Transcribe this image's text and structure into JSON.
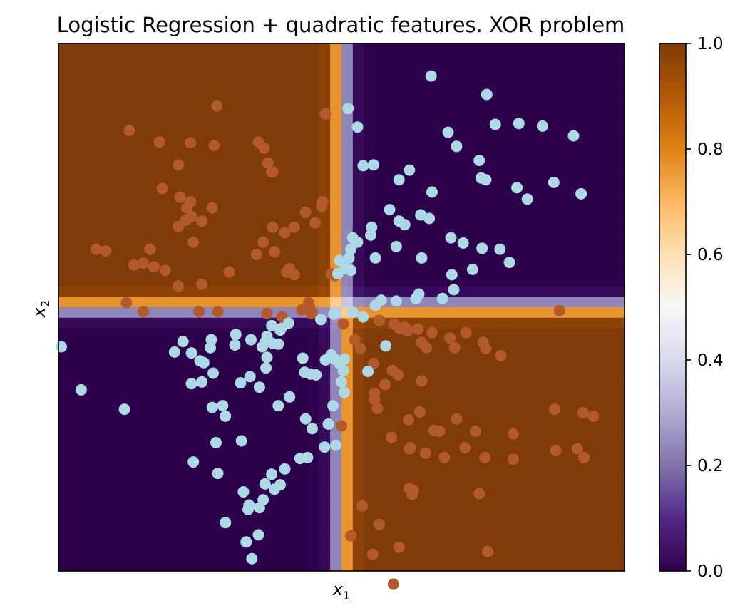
{
  "chart_data": {
    "type": "heatmap",
    "title": "Logistic Regression + quadratic features. XOR problem",
    "xlabel": "x1",
    "ylabel": "x2",
    "xlabel_base": "x",
    "xlabel_sub": "1",
    "ylabel_base": "x",
    "ylabel_sub": "2",
    "xlim": [
      -3.0,
      3.0
    ],
    "ylim": [
      -3.0,
      3.0
    ],
    "x_ticks_shown": false,
    "y_ticks_shown": false,
    "grid": false,
    "decision_surface": {
      "description_of_values": "predicted probability of class 1",
      "grid_resolution": 50,
      "boundary_x": 0.0,
      "boundary_y": 0.0,
      "scale_x": 0.1,
      "scale_y": 0.1
    },
    "colorbar": {
      "colormap": "PuOr_r",
      "range": [
        0.0,
        1.0
      ],
      "ticks": [
        "0.0",
        "0.2",
        "0.4",
        "0.6",
        "0.8",
        "1.0"
      ],
      "tick_values": [
        0.0,
        0.2,
        0.4,
        0.6,
        0.8,
        1.0
      ],
      "placement": "right"
    },
    "colors": {
      "class_1_points": "#b35a2d",
      "class_0_points": "#add8e6",
      "high": "#7f3b08",
      "low": "#2d004b",
      "mid": "#f7f7f7"
    },
    "series": [
      {
        "class": 1,
        "color": "#b35a2d",
        "points": [
          [
            -2.25,
            2.01
          ],
          [
            -1.93,
            1.88
          ],
          [
            -1.6,
            1.87
          ],
          [
            -1.35,
            1.84
          ],
          [
            -0.88,
            1.88
          ],
          [
            -0.82,
            1.81
          ],
          [
            -1.32,
            2.29
          ],
          [
            -0.17,
            2.2
          ],
          [
            -1.73,
            1.62
          ],
          [
            -0.73,
            1.54
          ],
          [
            -0.78,
            1.64
          ],
          [
            -0.74,
            1.54
          ],
          [
            -1.9,
            1.35
          ],
          [
            -1.71,
            1.25
          ],
          [
            -1.6,
            1.2
          ],
          [
            -1.37,
            1.13
          ],
          [
            -1.73,
            0.92
          ],
          [
            -1.65,
            0.99
          ],
          [
            -1.59,
            1.03
          ],
          [
            -1.64,
            1.13
          ],
          [
            -1.48,
            0.98
          ],
          [
            -0.73,
            0.91
          ],
          [
            -0.38,
            1.08
          ],
          [
            -0.2,
            1.2
          ],
          [
            -0.21,
            1.15
          ],
          [
            -0.5,
            0.91
          ],
          [
            -0.28,
            0.96
          ],
          [
            -0.6,
            0.85
          ],
          [
            -0.83,
            0.74
          ],
          [
            -1.57,
            0.74
          ],
          [
            -2.5,
            0.64
          ],
          [
            -2.6,
            0.66
          ],
          [
            -2.03,
            0.66
          ],
          [
            -2.2,
            0.48
          ],
          [
            -2.1,
            0.5
          ],
          [
            -1.99,
            0.46
          ],
          [
            -1.87,
            0.42
          ],
          [
            -1.48,
            0.26
          ],
          [
            -1.19,
            0.4
          ],
          [
            -0.9,
            0.6
          ],
          [
            -0.71,
            0.63
          ],
          [
            -0.55,
            0.44
          ],
          [
            -0.5,
            0.37
          ],
          [
            -0.58,
            0.4
          ],
          [
            -0.11,
            0.38
          ],
          [
            -0.07,
            0.36
          ],
          [
            -1.73,
            0.24
          ],
          [
            -2.28,
            0.05
          ],
          [
            -2.1,
            -0.05
          ],
          [
            -1.51,
            -0.05
          ],
          [
            -1.31,
            -0.05
          ],
          [
            -0.79,
            -0.07
          ],
          [
            -0.63,
            -0.11
          ],
          [
            -0.42,
            -0.03
          ],
          [
            -0.35,
            0.05
          ],
          [
            -0.34,
            0.01
          ],
          [
            -0.32,
            -0.07
          ],
          [
            -0.31,
            -0.06
          ],
          [
            0.02,
            -0.19
          ],
          [
            0.14,
            -0.37
          ],
          [
            0.2,
            -0.47
          ],
          [
            0.4,
            -0.15
          ],
          [
            0.56,
            -0.19
          ],
          [
            0.61,
            -0.24
          ],
          [
            0.7,
            -0.27
          ],
          [
            0.85,
            -0.4
          ],
          [
            0.67,
            -0.23
          ],
          [
            0.81,
            -0.25
          ],
          [
            0.9,
            -0.46
          ],
          [
            0.96,
            -0.29
          ],
          [
            1.15,
            -0.35
          ],
          [
            1.2,
            -0.46
          ],
          [
            1.32,
            -0.29
          ],
          [
            1.5,
            -0.4
          ],
          [
            1.53,
            -0.47
          ],
          [
            1.69,
            -0.55
          ],
          [
            0.54,
            -0.72
          ],
          [
            0.6,
            -0.77
          ],
          [
            0.34,
            -0.64
          ],
          [
            0.46,
            -0.88
          ],
          [
            0.35,
            -1.05
          ],
          [
            0.35,
            -0.98
          ],
          [
            0.38,
            -1.15
          ],
          [
            0.83,
            -1.19
          ],
          [
            0.85,
            -0.84
          ],
          [
            0.73,
            -1.6
          ],
          [
            0.72,
            -1.61
          ],
          [
            0.71,
            -1.28
          ],
          [
            0.53,
            -1.48
          ],
          [
            1.22,
            -1.27
          ],
          [
            1.31,
            -1.6
          ],
          [
            1.52,
            -1.71
          ],
          [
            1.82,
            -1.73
          ],
          [
            1.82,
            -1.44
          ],
          [
            2.26,
            -1.16
          ],
          [
            2.27,
            -1.63
          ],
          [
            2.56,
            -1.2
          ],
          [
            2.67,
            -1.24
          ],
          [
            2.57,
            -1.71
          ],
          [
            2.5,
            -1.61
          ],
          [
            1.09,
            -1.71
          ],
          [
            1.04,
            -1.41
          ],
          [
            0.98,
            -1.4
          ],
          [
            0.89,
            -1.66
          ],
          [
            1.42,
            -1.41
          ],
          [
            0.72,
            -2.06
          ],
          [
            0.4,
            -2.47
          ],
          [
            0.22,
            -2.26
          ],
          [
            0.76,
            -2.08
          ],
          [
            0.75,
            -2.13
          ],
          [
            0.1,
            -2.6
          ],
          [
            0.33,
            -2.81
          ],
          [
            1.55,
            -2.78
          ],
          [
            0.61,
            -2.73
          ],
          [
            1.46,
            -2.12
          ],
          [
            2.31,
            -0.04
          ],
          [
            0.0,
            -1.35
          ],
          [
            0.55,
            -3.15
          ]
        ]
      },
      {
        "class": 0,
        "color": "#add8e6",
        "points": [
          [
            0.95,
            2.63
          ],
          [
            1.54,
            2.42
          ],
          [
            1.63,
            2.08
          ],
          [
            1.88,
            2.09
          ],
          [
            2.13,
            2.06
          ],
          [
            2.46,
            1.95
          ],
          [
            1.13,
            1.99
          ],
          [
            1.22,
            1.83
          ],
          [
            1.46,
            1.67
          ],
          [
            1.53,
            1.45
          ],
          [
            2.25,
            1.42
          ],
          [
            2.54,
            1.29
          ],
          [
            1.97,
            1.23
          ],
          [
            1.86,
            1.36
          ],
          [
            1.48,
            1.47
          ],
          [
            0.96,
            1.31
          ],
          [
            0.72,
            1.56
          ],
          [
            0.61,
            1.45
          ],
          [
            0.34,
            1.62
          ],
          [
            0.17,
            2.05
          ],
          [
            0.07,
            2.26
          ],
          [
            0.23,
            1.61
          ],
          [
            0.51,
            1.11
          ],
          [
            0.61,
            0.98
          ],
          [
            0.67,
            0.94
          ],
          [
            0.84,
            1.05
          ],
          [
            0.93,
            1.01
          ],
          [
            0.32,
            0.91
          ],
          [
            0.31,
            0.82
          ],
          [
            0.17,
            0.74
          ],
          [
            0.12,
            0.79
          ],
          [
            0.1,
            0.66
          ],
          [
            0.08,
            0.56
          ],
          [
            -0.02,
            0.53
          ],
          [
            -0.04,
            0.38
          ],
          [
            0.04,
            0.44
          ],
          [
            0.1,
            0.42
          ],
          [
            0.36,
            0.56
          ],
          [
            0.58,
            0.69
          ],
          [
            0.85,
            0.56
          ],
          [
            1.16,
            0.79
          ],
          [
            1.29,
            0.73
          ],
          [
            1.49,
            0.67
          ],
          [
            1.68,
            0.66
          ],
          [
            1.78,
            0.51
          ],
          [
            1.39,
            0.43
          ],
          [
            1.17,
            0.37
          ],
          [
            1.19,
            0.2
          ],
          [
            1.07,
            0.1
          ],
          [
            0.79,
            0.1
          ],
          [
            0.82,
            0.15
          ],
          [
            0.58,
            0.07
          ],
          [
            0.42,
            0.08
          ],
          [
            0.36,
            0.02
          ],
          [
            0.12,
            -0.06
          ],
          [
            0.23,
            -0.11
          ],
          [
            -0.08,
            -0.08
          ],
          [
            -0.22,
            -0.14
          ],
          [
            -0.56,
            -0.18
          ],
          [
            -0.64,
            -0.24
          ],
          [
            -0.65,
            -0.26
          ],
          [
            -0.74,
            -0.21
          ],
          [
            -0.79,
            -0.33
          ],
          [
            -0.81,
            -0.4
          ],
          [
            -0.84,
            -0.45
          ],
          [
            -0.67,
            -0.42
          ],
          [
            -0.73,
            -0.41
          ],
          [
            -0.96,
            -0.37
          ],
          [
            -1.12,
            -0.31
          ],
          [
            -1.13,
            -0.43
          ],
          [
            -1.38,
            -0.37
          ],
          [
            -1.39,
            -0.46
          ],
          [
            -1.59,
            -0.52
          ],
          [
            -1.68,
            -0.39
          ],
          [
            -1.77,
            -0.51
          ],
          [
            -1.5,
            -0.61
          ],
          [
            -1.46,
            -0.63
          ],
          [
            -1.36,
            -0.75
          ],
          [
            -1.48,
            -0.85
          ],
          [
            -1.59,
            -0.87
          ],
          [
            -1.37,
            -1.14
          ],
          [
            -1.26,
            -1.12
          ],
          [
            -1.23,
            -1.24
          ],
          [
            -0.79,
            -0.57
          ],
          [
            -0.8,
            -0.69
          ],
          [
            -0.87,
            -0.91
          ],
          [
            -0.97,
            -0.79
          ],
          [
            -1.07,
            -0.86
          ],
          [
            -0.41,
            -0.58
          ],
          [
            -0.39,
            -0.74
          ],
          [
            -0.33,
            -0.76
          ],
          [
            -0.27,
            -0.77
          ],
          [
            -0.17,
            -0.6
          ],
          [
            -0.11,
            -0.54
          ],
          [
            -0.02,
            -0.64
          ],
          [
            0.02,
            -0.72
          ],
          [
            0.0,
            -0.85
          ],
          [
            0.03,
            -0.97
          ],
          [
            -0.67,
            -1.12
          ],
          [
            -0.55,
            -1.02
          ],
          [
            -0.38,
            -1.27
          ],
          [
            -0.31,
            -1.38
          ],
          [
            -0.09,
            -1.12
          ],
          [
            -0.14,
            -1.33
          ],
          [
            -0.06,
            -1.57
          ],
          [
            -0.18,
            -1.59
          ],
          [
            -0.36,
            -1.71
          ],
          [
            -0.44,
            -1.72
          ],
          [
            -0.6,
            -1.84
          ],
          [
            -0.74,
            -1.9
          ],
          [
            -0.71,
            -2.07
          ],
          [
            -0.81,
            -2.01
          ],
          [
            -1.04,
            -2.1
          ],
          [
            -0.98,
            -2.25
          ],
          [
            -0.87,
            -2.28
          ],
          [
            -0.99,
            -2.3
          ],
          [
            -0.88,
            -2.59
          ],
          [
            -0.95,
            -2.86
          ],
          [
            -1.57,
            -1.76
          ],
          [
            -2.3,
            -1.16
          ],
          [
            -2.97,
            -0.45
          ],
          [
            -2.76,
            -0.94
          ],
          [
            -1.33,
            -1.54
          ],
          [
            -1.06,
            -1.52
          ],
          [
            -1.31,
            -1.89
          ],
          [
            -1.23,
            -2.45
          ],
          [
            -1.01,
            -2.67
          ],
          [
            0.28,
            -0.73
          ],
          [
            0.47,
            -0.44
          ],
          [
            0.03,
            -0.59
          ],
          [
            -0.83,
            -2.19
          ],
          [
            -0.65,
            -2.02
          ],
          [
            -0.07,
            -0.59
          ]
        ]
      }
    ]
  }
}
